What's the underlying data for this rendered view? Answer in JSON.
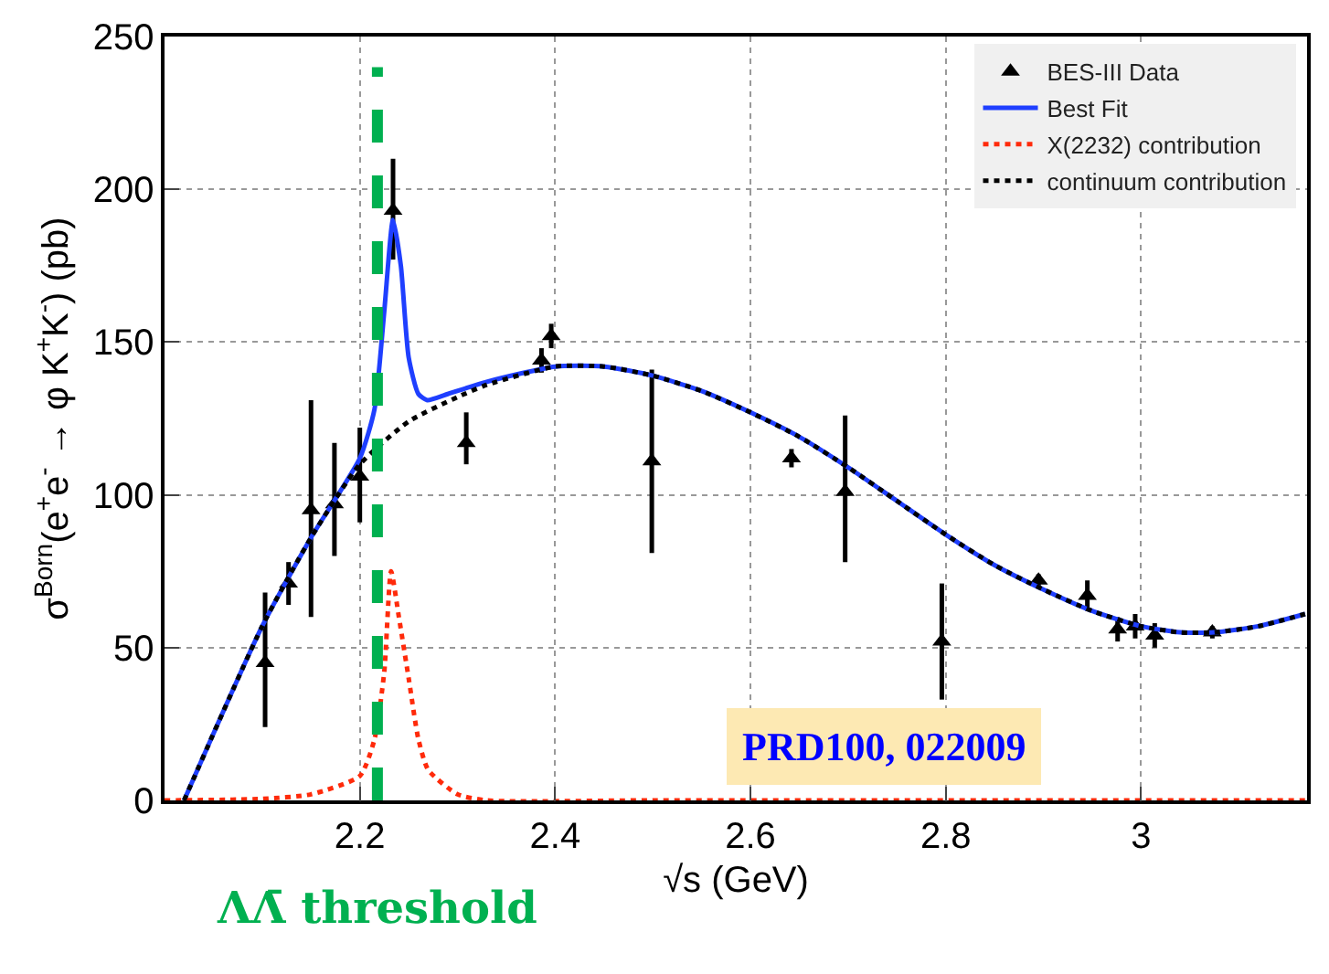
{
  "chart_data": {
    "type": "scatter",
    "xlabel": "√s (GeV)",
    "ylabel": "σ$^{Born}$(e$^{+}$e$^{-}$ → φ K$^{+}$K$^{-}$) (pb)",
    "xlim": [
      2.0,
      3.17
    ],
    "ylim": [
      0,
      250
    ],
    "xticks": [
      2.2,
      2.4,
      2.6,
      2.8,
      3
    ],
    "yticks": [
      0,
      50,
      100,
      150,
      200,
      250
    ],
    "grid": true,
    "legend": "top right",
    "series": [
      {
        "name": "BES-III Data",
        "marker": "triangle",
        "color": "#000000",
        "x": [
          2.103,
          2.127,
          2.15,
          2.174,
          2.2,
          2.234,
          2.309,
          2.386,
          2.396,
          2.499,
          2.642,
          2.697,
          2.796,
          2.895,
          2.945,
          2.976,
          2.994,
          3.014,
          3.073
        ],
        "values": [
          45,
          71,
          95,
          97,
          106,
          193,
          117,
          144,
          152,
          111,
          112,
          101,
          52,
          72,
          67,
          56,
          57,
          54,
          55
        ],
        "errors": [
          [
            24,
            68
          ],
          [
            64,
            78
          ],
          [
            60,
            131
          ],
          [
            80,
            117
          ],
          [
            91,
            122
          ],
          [
            177,
            210
          ],
          [
            110,
            127
          ],
          4,
          4,
          [
            81,
            141
          ],
          3,
          [
            78,
            126
          ],
          19,
          2,
          5,
          4,
          4,
          4,
          2
        ]
      },
      {
        "name": "Best Fit",
        "type": "line",
        "line_style": "solid",
        "color": "#1f3fff",
        "x": [
          2.02,
          2.1,
          2.15,
          2.2,
          2.215,
          2.225,
          2.234,
          2.242,
          2.25,
          2.26,
          2.269,
          2.29,
          2.33,
          2.4,
          2.45,
          2.5,
          2.55,
          2.6,
          2.65,
          2.7,
          2.75,
          2.8,
          2.85,
          2.9,
          2.95,
          3.0,
          3.04,
          3.075,
          3.12,
          3.168
        ],
        "values": [
          0,
          57,
          86,
          112,
          128,
          160,
          190,
          175,
          145,
          133,
          131,
          133,
          137,
          142,
          142,
          139,
          134,
          127,
          119,
          109,
          98,
          87,
          77,
          69,
          62,
          57,
          55,
          55,
          57,
          61
        ]
      },
      {
        "name": "X(2232) contribution",
        "type": "line",
        "line_style": "dotted",
        "color": "#ff2a0a",
        "x": [
          2.0,
          2.1,
          2.15,
          2.2,
          2.215,
          2.225,
          2.232,
          2.24,
          2.25,
          2.26,
          2.27,
          2.3,
          2.33,
          2.5,
          3.17
        ],
        "values": [
          0,
          0.5,
          2,
          8,
          20,
          42,
          75,
          60,
          40,
          20,
          10,
          2,
          0,
          0,
          0
        ]
      },
      {
        "name": "continuum contribution",
        "type": "line",
        "line_style": "dotted",
        "color": "#000000",
        "x": [
          2.02,
          2.1,
          2.15,
          2.2,
          2.25,
          2.3,
          2.33,
          2.4,
          2.45,
          2.5,
          2.55,
          2.6,
          2.65,
          2.7,
          2.75,
          2.8,
          2.85,
          2.9,
          2.95,
          3.0,
          3.04,
          3.075,
          3.12,
          3.168
        ],
        "values": [
          0,
          57,
          86,
          110,
          124,
          132,
          136,
          142,
          142,
          139,
          134,
          127,
          119,
          109,
          98,
          87,
          77,
          69,
          62,
          57,
          55,
          55,
          57,
          61
        ]
      }
    ],
    "ref_lines": [
      {
        "axis": "x",
        "value": 2.218,
        "label": "ΛΛ̄ threshold",
        "color": "#00b050",
        "line_style": "dashed"
      }
    ],
    "annotations": [
      "PRD100, 022009"
    ]
  }
}
